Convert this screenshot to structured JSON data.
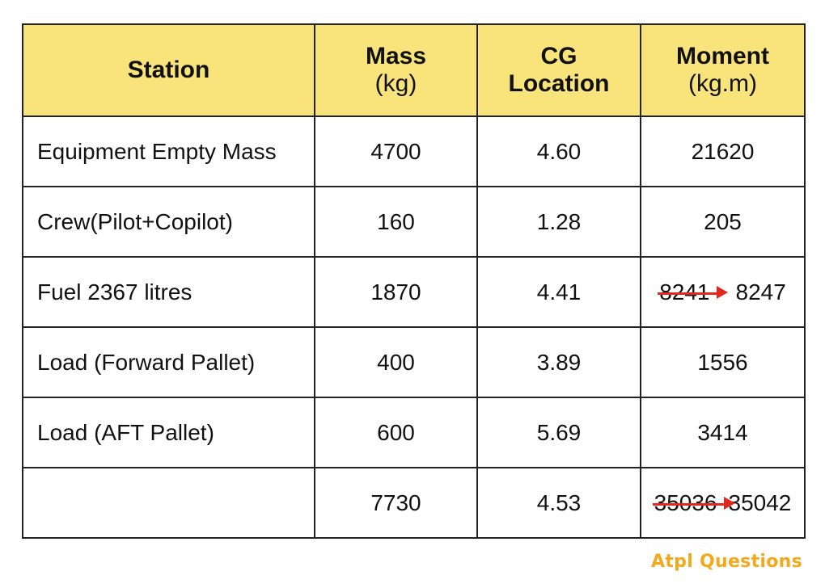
{
  "table": {
    "headers": {
      "station": "Station",
      "mass_title": "Mass",
      "mass_unit": "(kg)",
      "cg_line1": "CG",
      "cg_line2": "Location",
      "moment_title": "Moment",
      "moment_unit": "(kg.m)"
    },
    "rows": [
      {
        "station": "Equipment Empty Mass",
        "mass": "4700",
        "cg": "4.60",
        "moment": "21620"
      },
      {
        "station": "Crew(Pilot+Copilot)",
        "mass": "160",
        "cg": "1.28",
        "moment": "205"
      },
      {
        "station": "Fuel 2367 litres",
        "mass": "1870",
        "cg": "4.41",
        "moment_old": "8241",
        "moment": "8247"
      },
      {
        "station": "Load (Forward Pallet)",
        "mass": "400",
        "cg": "3.89",
        "moment": "1556"
      },
      {
        "station": "Load (AFT Pallet)",
        "mass": "600",
        "cg": "5.69",
        "moment": "3414"
      },
      {
        "station": "",
        "mass": "7730",
        "cg": "4.53",
        "moment_old": "35036",
        "moment": "35042"
      }
    ]
  },
  "colors": {
    "header_bg": "#f8e47a",
    "correction_red": "#e0281e",
    "brand": "#f2a91c"
  },
  "branding": {
    "logo_text": "Atpl Questions"
  }
}
